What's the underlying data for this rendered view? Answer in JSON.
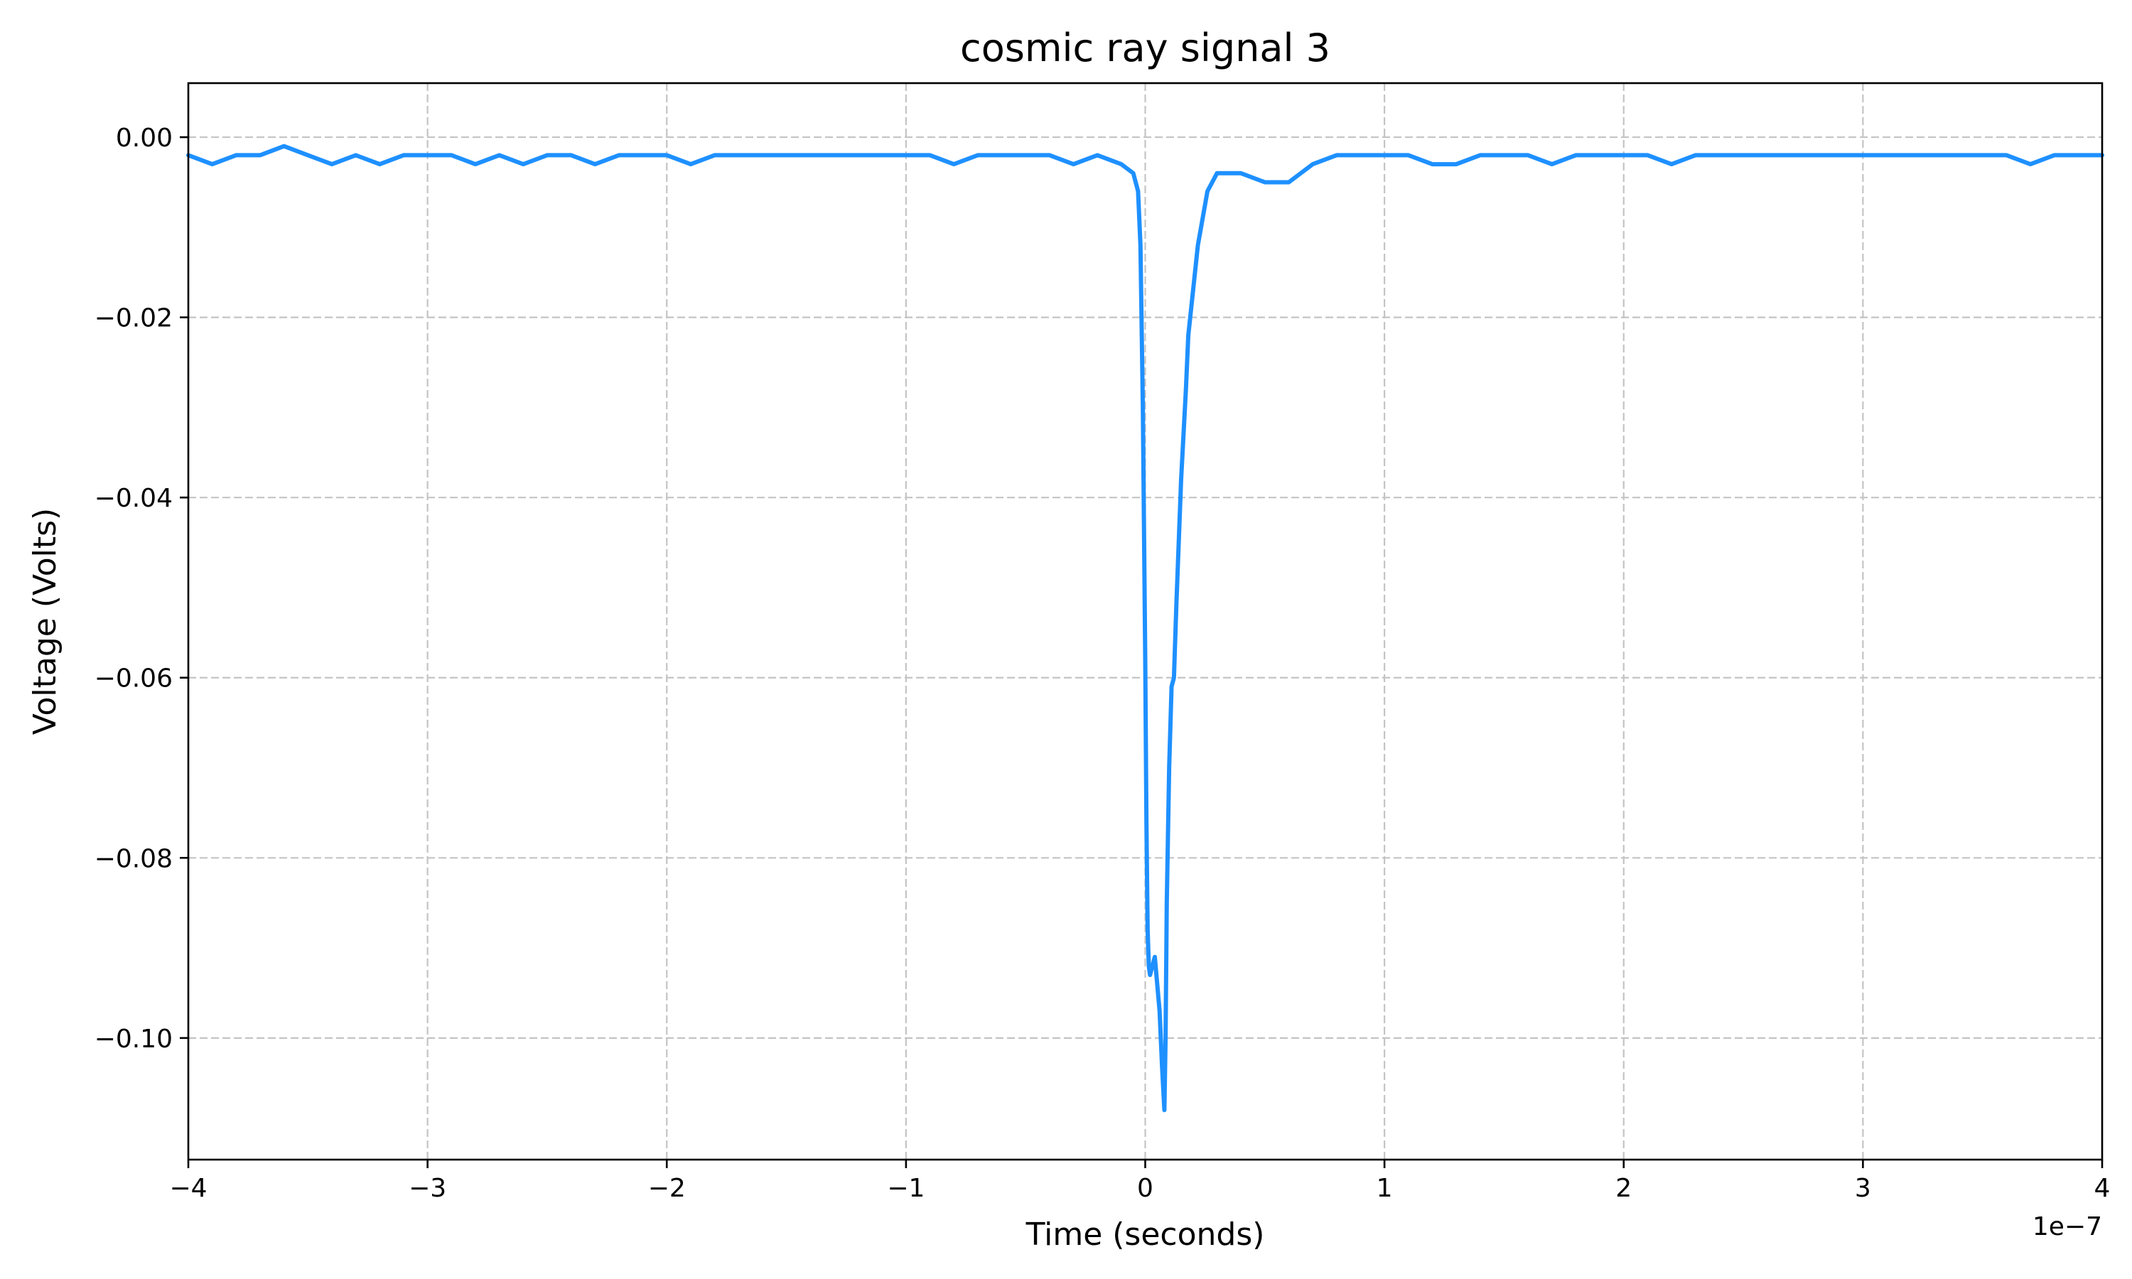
{
  "chart_data": {
    "type": "line",
    "title": "cosmic ray signal 3",
    "xlabel": "Time (seconds)",
    "ylabel": "Voltage (Volts)",
    "x_offset_label": "1e−7",
    "xlim": [
      -4e-07,
      4e-07
    ],
    "ylim": [
      -0.1135,
      0.006
    ],
    "x_ticks": [
      -4e-07,
      -3e-07,
      -2e-07,
      -1e-07,
      0,
      1e-07,
      2e-07,
      3e-07,
      4e-07
    ],
    "x_tick_labels": [
      "−4",
      "−3",
      "−2",
      "−1",
      "0",
      "1",
      "2",
      "3",
      "4"
    ],
    "y_ticks": [
      0,
      -0.02,
      -0.04,
      -0.06,
      -0.08,
      -0.1
    ],
    "y_tick_labels": [
      "0.00",
      "−0.02",
      "−0.04",
      "−0.06",
      "−0.08",
      "−0.10"
    ],
    "grid": true,
    "line_color": "#1e90ff",
    "series": [
      {
        "x": [
          -4e-07,
          -3.9e-07,
          -3.8e-07,
          -3.7e-07,
          -3.6e-07,
          -3.5e-07,
          -3.4e-07,
          -3.3e-07,
          -3.2e-07,
          -3.1e-07,
          -3e-07,
          -2.9e-07,
          -2.8e-07,
          -2.7e-07,
          -2.6e-07,
          -2.5e-07,
          -2.4e-07,
          -2.3e-07,
          -2.2e-07,
          -2.1e-07,
          -2e-07,
          -1.9e-07,
          -1.8e-07,
          -1.7e-07,
          -1.6e-07,
          -1.5e-07,
          -1.4e-07,
          -1.3e-07,
          -1.2e-07,
          -1.1e-07,
          -1e-07,
          -9e-08,
          -8e-08,
          -7e-08,
          -6e-08,
          -5e-08,
          -4e-08,
          -3e-08,
          -2e-08,
          -1e-08,
          -5e-09,
          -3e-09,
          -2e-09,
          -1e-09,
          0,
          5e-10,
          1e-09,
          1.5e-09,
          2e-09,
          3e-09,
          4e-09,
          5e-09,
          6e-09,
          7e-09,
          8e-09,
          8.5e-09,
          9e-09,
          1e-08,
          1.1e-08,
          1.2e-08,
          1.3e-08,
          1.5e-08,
          1.7e-08,
          1.8e-08,
          2e-08,
          2.2e-08,
          2.4e-08,
          2.6e-08,
          3e-08,
          3.5e-08,
          4e-08,
          5e-08,
          6e-08,
          7e-08,
          8e-08,
          9e-08,
          1e-07,
          1.1e-07,
          1.2e-07,
          1.3e-07,
          1.4e-07,
          1.5e-07,
          1.6e-07,
          1.7e-07,
          1.8e-07,
          1.9e-07,
          2e-07,
          2.1e-07,
          2.2e-07,
          2.3e-07,
          2.4e-07,
          2.5e-07,
          2.6e-07,
          2.7e-07,
          2.8e-07,
          2.9e-07,
          3e-07,
          3.1e-07,
          3.2e-07,
          3.3e-07,
          3.4e-07,
          3.5e-07,
          3.6e-07,
          3.7e-07,
          3.8e-07,
          3.9e-07,
          4e-07
        ],
        "y": [
          -0.002,
          -0.003,
          -0.002,
          -0.002,
          -0.001,
          -0.002,
          -0.003,
          -0.002,
          -0.003,
          -0.002,
          -0.002,
          -0.002,
          -0.003,
          -0.002,
          -0.003,
          -0.002,
          -0.002,
          -0.003,
          -0.002,
          -0.002,
          -0.002,
          -0.003,
          -0.002,
          -0.002,
          -0.002,
          -0.002,
          -0.002,
          -0.002,
          -0.002,
          -0.002,
          -0.002,
          -0.002,
          -0.003,
          -0.002,
          -0.002,
          -0.002,
          -0.002,
          -0.003,
          -0.002,
          -0.003,
          -0.004,
          -0.006,
          -0.012,
          -0.03,
          -0.058,
          -0.076,
          -0.088,
          -0.092,
          -0.093,
          -0.092,
          -0.091,
          -0.094,
          -0.097,
          -0.103,
          -0.108,
          -0.1,
          -0.085,
          -0.07,
          -0.061,
          -0.06,
          -0.052,
          -0.038,
          -0.028,
          -0.022,
          -0.017,
          -0.012,
          -0.009,
          -0.006,
          -0.004,
          -0.004,
          -0.004,
          -0.005,
          -0.005,
          -0.003,
          -0.002,
          -0.002,
          -0.002,
          -0.002,
          -0.003,
          -0.003,
          -0.002,
          -0.002,
          -0.002,
          -0.003,
          -0.002,
          -0.002,
          -0.002,
          -0.002,
          -0.003,
          -0.002,
          -0.002,
          -0.002,
          -0.002,
          -0.002,
          -0.002,
          -0.002,
          -0.002,
          -0.002,
          -0.002,
          -0.002,
          -0.002,
          -0.002,
          -0.002,
          -0.003,
          -0.002,
          -0.002,
          -0.002
        ]
      }
    ]
  }
}
